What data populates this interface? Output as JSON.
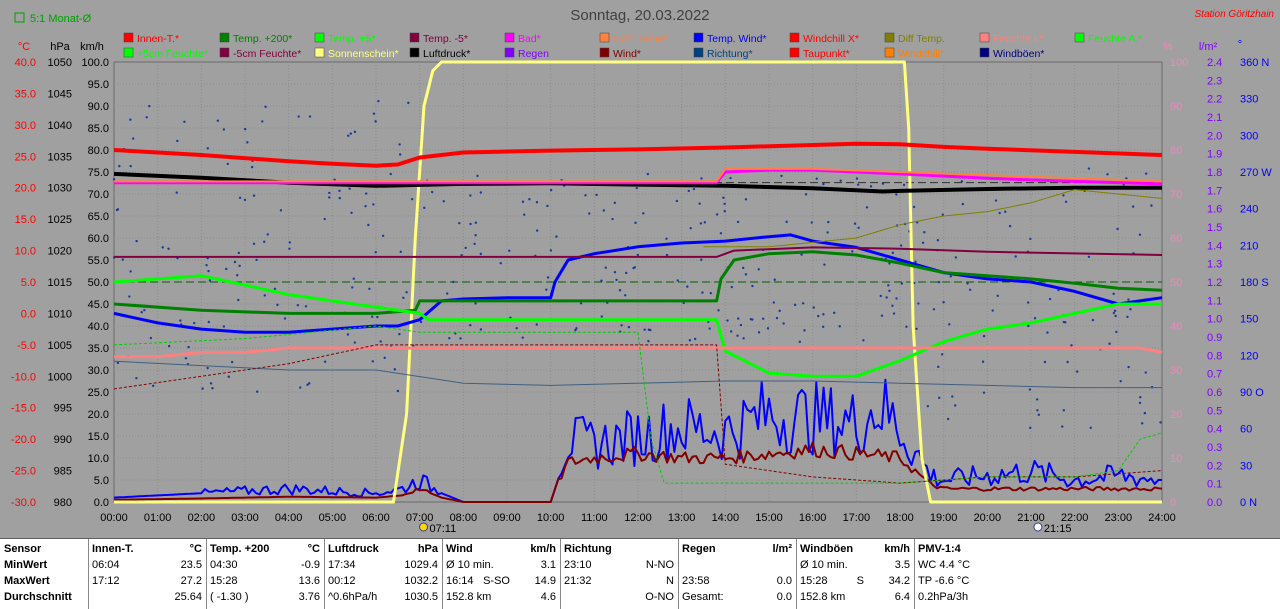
{
  "header": {
    "title": "Sonntag, 20.03.2022",
    "station": "Station Göritzhain",
    "checkbox_label": "5:1 Monat-Ø"
  },
  "colors": {
    "background": "#a0a0a0",
    "grid": "#8c8c8c"
  },
  "axes": {
    "temp": {
      "unit": "°C",
      "ticks": [
        "40.0",
        "35.0",
        "30.0",
        "25.0",
        "20.0",
        "15.0",
        "10.0",
        "5.0",
        "0.0",
        "-5.0",
        "-10.0",
        "-15.0",
        "-20.0",
        "-25.0",
        "-30.0"
      ],
      "color": "#ff0000"
    },
    "hpa": {
      "unit": "hPa",
      "ticks": [
        "1050",
        "1045",
        "1040",
        "1035",
        "1030",
        "1025",
        "1020",
        "1015",
        "1010",
        "1005",
        "1000",
        "995",
        "990",
        "985",
        "980"
      ],
      "color": "#000000"
    },
    "kmh": {
      "unit": "km/h",
      "ticks": [
        "100.0",
        "95.0",
        "90.0",
        "85.0",
        "80.0",
        "75.0",
        "70.0",
        "65.0",
        "60.0",
        "55.0",
        "50.0",
        "45.0",
        "40.0",
        "35.0",
        "30.0",
        "25.0",
        "20.0",
        "15.0",
        "10.0",
        "5.0",
        "0.0"
      ],
      "color": "#000000"
    },
    "pct": {
      "unit": "%",
      "ticks": [
        "100",
        "90",
        "80",
        "70",
        "60",
        "50",
        "40",
        "30",
        "20",
        "10",
        "0"
      ],
      "color": "#ff7fbf"
    },
    "lm2": {
      "unit": "l/m²",
      "ticks": [
        "2.4",
        "2.3",
        "2.2",
        "2.1",
        "2.0",
        "1.9",
        "1.8",
        "1.7",
        "1.6",
        "1.5",
        "1.4",
        "1.3",
        "1.2",
        "1.1",
        "1.0",
        "0.9",
        "0.8",
        "0.7",
        "0.6",
        "0.5",
        "0.4",
        "0.3",
        "0.2",
        "0.1",
        "0.0"
      ],
      "color": "#8000ff"
    },
    "dir": {
      "unit": "°",
      "ticks": [
        "360 N",
        "330",
        "300",
        "270 W",
        "240",
        "210",
        "180 S",
        "150",
        "120",
        "90 O",
        "60",
        "30",
        "0 N"
      ],
      "color": "#0000ff"
    },
    "time": {
      "ticks": [
        "00:00",
        "01:00",
        "02:00",
        "03:00",
        "04:00",
        "05:00",
        "06:00",
        "07:00",
        "08:00",
        "09:00",
        "10:00",
        "11:00",
        "12:00",
        "13:00",
        "14:00",
        "15:00",
        "16:00",
        "17:00",
        "18:00",
        "19:00",
        "20:00",
        "21:00",
        "22:00",
        "23:00",
        "24:00"
      ]
    }
  },
  "sun_markers": [
    {
      "hour": 7.18,
      "label": "07:11",
      "icon": "sunrise-icon"
    },
    {
      "hour": 21.25,
      "label": "21:15",
      "icon": "moonrise-icon"
    }
  ],
  "legend": [
    {
      "label": "Innen-T.*",
      "color": "#ff0000"
    },
    {
      "label": "Temp. +200*",
      "color": "#008000"
    },
    {
      "label": "Temp. +5*",
      "color": "#00ff00"
    },
    {
      "label": "Temp. -5*",
      "color": "#800040"
    },
    {
      "label": "Bad*",
      "color": "#ff00ff"
    },
    {
      "label": "Gast Temp*",
      "color": "#ff8040"
    },
    {
      "label": "Temp. Wind*",
      "color": "#0000ff"
    },
    {
      "label": "Windchill X*",
      "color": "#ff0000"
    },
    {
      "label": "Diff Temp.",
      "color": "#808000"
    },
    {
      "label": "Feuchte I.*",
      "color": "#ff8080"
    },
    {
      "label": "Feuchte A.*",
      "color": "#00ff00"
    },
    {
      "label": "+5cm Feuchte*",
      "color": "#00ff00"
    },
    {
      "label": "-5cm Feuchte*",
      "color": "#800040"
    },
    {
      "label": "Sonnenschein*",
      "color": "#ffff80"
    },
    {
      "label": "Luftdruck*",
      "color": "#000000"
    },
    {
      "label": "Regen",
      "color": "#8000ff"
    },
    {
      "label": "Wind*",
      "color": "#800000"
    },
    {
      "label": "Richtung*",
      "color": "#004080"
    },
    {
      "label": "Taupunkt*",
      "color": "#ff0000"
    },
    {
      "label": "Windchill*",
      "color": "#ff8000"
    },
    {
      "label": "Windböen*",
      "color": "#000080"
    }
  ],
  "chart_data": {
    "type": "line",
    "x_unit": "hours",
    "xlim": [
      0,
      24
    ],
    "series": [
      {
        "name": "Sonnenschein*",
        "axis": "pct",
        "color": "#ffff80",
        "width": 3,
        "x": [
          0,
          6.4,
          6.7,
          6.9,
          7.1,
          7.3,
          7.5,
          17.6,
          18.0,
          18.1,
          18.2,
          18.3,
          18.5,
          18.7,
          24
        ],
        "y": [
          0,
          0,
          20,
          60,
          90,
          98,
          100,
          100,
          100,
          100,
          85,
          40,
          10,
          0,
          0
        ]
      },
      {
        "name": "Innen-T.*",
        "axis": "temp",
        "color": "#ff0000",
        "width": 4,
        "x": [
          0,
          2,
          4,
          5,
          6,
          6.5,
          7,
          8,
          10,
          12,
          14,
          16,
          17,
          18,
          19,
          20,
          22,
          24
        ],
        "y": [
          26,
          25.2,
          24.2,
          23.8,
          23.5,
          23.7,
          24.8,
          25.6,
          25.9,
          26.1,
          26.4,
          26.8,
          27.0,
          26.9,
          26.5,
          26.2,
          25.7,
          25.2
        ]
      },
      {
        "name": "Luftdruck*",
        "axis": "hpa",
        "color": "#000000",
        "width": 4,
        "x": [
          0,
          2,
          4,
          6,
          8,
          10,
          12,
          14,
          16,
          17.6,
          18,
          20,
          22,
          24
        ],
        "y": [
          1032.2,
          1031.6,
          1030.8,
          1030.3,
          1030.6,
          1030.7,
          1030.5,
          1030.3,
          1029.9,
          1029.4,
          1029.5,
          1029.8,
          1030.0,
          1030.0
        ]
      },
      {
        "name": "Temp. Wind*",
        "axis": "temp",
        "color": "#0000ff",
        "width": 3,
        "x": [
          0,
          1,
          2,
          3,
          4,
          5,
          6,
          6.5,
          7,
          7.5,
          8,
          9,
          10,
          10.1,
          10.4,
          11,
          12,
          13,
          14,
          15,
          15.5,
          16,
          17,
          18,
          19,
          20,
          21,
          22,
          23,
          24
        ],
        "y": [
          0,
          -1.5,
          -2.5,
          -3,
          -3,
          -2.5,
          -2,
          -2,
          -1,
          2,
          2.3,
          2.5,
          2.5,
          5,
          8.5,
          9.5,
          10.6,
          11.2,
          11.5,
          12.2,
          12.5,
          11.5,
          10.5,
          8.5,
          6.5,
          5.5,
          5.0,
          3.5,
          1.5,
          2.5
        ]
      },
      {
        "name": "Temp. +200*",
        "axis": "temp",
        "color": "#008000",
        "width": 3,
        "x": [
          0,
          2,
          4,
          6,
          6.9,
          7,
          13.8,
          13.9,
          14.2,
          15,
          16,
          17,
          18,
          19,
          20,
          21,
          22,
          23,
          24
        ],
        "y": [
          1.5,
          0.5,
          0,
          0,
          0.5,
          2,
          2,
          5.5,
          8.5,
          9.5,
          9.8,
          9.3,
          8.0,
          6.5,
          6.0,
          5.5,
          4.8,
          4.0,
          3.7
        ]
      },
      {
        "name": "Temp. +5*",
        "axis": "temp",
        "color": "#00ff00",
        "width": 3,
        "x": [
          0,
          1,
          2,
          3,
          4,
          5,
          6,
          7,
          7.2,
          12,
          13.8,
          14,
          15,
          16,
          17,
          18,
          19,
          20,
          21,
          22,
          23,
          24
        ],
        "y": [
          5,
          5.5,
          6,
          4.5,
          3,
          2,
          1,
          0,
          -1,
          -1,
          -1,
          -6,
          -9.5,
          -10,
          -10,
          -7.5,
          -4.5,
          -2.5,
          -1.5,
          0,
          1.5,
          1.5
        ]
      },
      {
        "name": "Temp. -5*",
        "axis": "temp",
        "color": "#800040",
        "width": 2,
        "x": [
          0,
          13.8,
          14.2,
          16,
          18,
          20,
          24
        ],
        "y": [
          9,
          9,
          10,
          10.5,
          10.3,
          9.8,
          9.3
        ]
      },
      {
        "name": "Bad*",
        "axis": "temp",
        "color": "#ff00ff",
        "width": 3,
        "x": [
          0,
          13.8,
          14,
          15,
          16,
          17,
          18,
          20,
          22,
          24
        ],
        "y": [
          20.8,
          20.8,
          22.5,
          22.8,
          22.8,
          22.5,
          22.2,
          21.5,
          21,
          20.6
        ]
      },
      {
        "name": "Gast Temp*",
        "axis": "temp",
        "color": "#ff8040",
        "width": 2,
        "x": [
          0,
          13.8,
          14,
          16,
          18,
          20,
          22,
          24
        ],
        "y": [
          21,
          21,
          23,
          23,
          22.5,
          22,
          21.5,
          21
        ]
      },
      {
        "name": "Feuchte I.*",
        "axis": "pct",
        "color": "#ff8080",
        "width": 3,
        "x": [
          0,
          1,
          2,
          3,
          4,
          5,
          6,
          7,
          8,
          10,
          12,
          14,
          16,
          18,
          20,
          22,
          23.5,
          24
        ],
        "y": [
          33,
          33,
          34,
          34,
          35,
          35,
          35,
          35,
          35,
          35,
          35,
          35,
          35,
          35,
          35,
          35,
          35,
          34
        ]
      },
      {
        "name": "Diff Temp.",
        "axis": "pct",
        "color": "#808000",
        "width": 1,
        "x": [
          13.5,
          14,
          15,
          16,
          17,
          18,
          19,
          20,
          21,
          22,
          23,
          24
        ],
        "y": [
          58,
          58,
          58,
          59,
          60,
          63,
          65,
          66,
          68,
          71,
          70,
          69
        ]
      },
      {
        "name": "Richtung*",
        "axis": "pct",
        "color": "#406080",
        "width": 1,
        "x": [
          0,
          2,
          4,
          6,
          8,
          10,
          12,
          14,
          16,
          18,
          20,
          22,
          24
        ],
        "y": [
          32,
          31,
          30,
          30,
          27,
          26.5,
          27,
          27.5,
          27.5,
          27,
          26.5,
          26,
          26
        ]
      }
    ],
    "wind": {
      "axis": "kmh",
      "color": "#800000",
      "x": [
        0,
        2,
        4,
        6,
        6.6,
        7,
        7.5,
        8,
        10,
        10.1,
        10.4,
        11,
        12,
        13,
        14,
        15,
        16,
        17,
        18,
        18.7,
        19,
        20,
        21,
        22,
        23,
        24
      ],
      "y": [
        0.5,
        0.8,
        1.2,
        1.0,
        1.5,
        3,
        1,
        0,
        0,
        3,
        9,
        10,
        11,
        10,
        10,
        11,
        12,
        11,
        10,
        4,
        3,
        3,
        3,
        3,
        3,
        3
      ]
    },
    "gusts": {
      "axis": "kmh",
      "color": "#0000ff",
      "x": [
        0,
        2,
        4,
        6,
        6.6,
        7,
        7.5,
        8,
        10,
        10.1,
        10.4,
        11,
        12,
        13,
        14,
        15,
        16,
        17,
        17.5,
        18,
        18.7,
        19,
        20,
        21,
        22,
        23,
        24
      ],
      "y": [
        1,
        2,
        3,
        2,
        3,
        5,
        2,
        0,
        0,
        5,
        14,
        13,
        15,
        17,
        16,
        20,
        19,
        18,
        22,
        17,
        6,
        5,
        6,
        7,
        5,
        6,
        5
      ]
    },
    "rain_mm": 0.0
  },
  "stats": {
    "cols": [
      {
        "title": "Sensor",
        "unit": "",
        "rows": [
          [
            "MinWert",
            "",
            ""
          ],
          [
            "MaxWert",
            "",
            ""
          ],
          [
            "Durchschnitt",
            "",
            ""
          ]
        ]
      },
      {
        "title": "Innen-T.",
        "unit": "°C",
        "rows": [
          [
            "06:04",
            "",
            "23.5"
          ],
          [
            "17:12",
            "",
            "27.2"
          ],
          [
            "",
            "",
            "25.64"
          ]
        ]
      },
      {
        "title": "Temp. +200",
        "unit": "°C",
        "rows": [
          [
            "04:30",
            "",
            "-0.9"
          ],
          [
            "15:28",
            "",
            "13.6"
          ],
          [
            "( -1.30 )",
            "",
            "3.76"
          ]
        ]
      },
      {
        "title": "Luftdruck",
        "unit": "hPa",
        "rows": [
          [
            "17:34",
            "",
            "1029.4"
          ],
          [
            "00:12",
            "",
            "1032.2"
          ],
          [
            "^0.6hPa/h",
            "",
            "1030.5"
          ]
        ]
      },
      {
        "title": "Wind",
        "unit": "km/h",
        "rows": [
          [
            "Ø 10 min.",
            "",
            "3.1"
          ],
          [
            "16:14",
            "S-SO",
            "14.9"
          ],
          [
            "152.8 km",
            "",
            "4.6"
          ]
        ]
      },
      {
        "title": "Richtung",
        "unit": "",
        "rows": [
          [
            "23:10",
            "",
            "N-NO"
          ],
          [
            "21:32",
            "",
            "N"
          ],
          [
            "",
            "",
            "O-NO"
          ]
        ]
      },
      {
        "title": "Regen",
        "unit": "l/m²",
        "rows": [
          [
            "",
            "",
            ""
          ],
          [
            "23:58",
            "",
            "0.0"
          ],
          [
            "Gesamt:",
            "",
            "0.0"
          ]
        ]
      },
      {
        "title": "Windböen",
        "unit": "km/h",
        "rows": [
          [
            "Ø 10 min.",
            "",
            "3.5"
          ],
          [
            "15:28",
            "S",
            "34.2"
          ],
          [
            "152.8 km",
            "",
            "6.4"
          ]
        ]
      },
      {
        "title": "PMV-1:4",
        "unit": "",
        "rows": [
          [
            "WC 4.4 °C",
            "",
            ""
          ],
          [
            "TP -6.6 °C",
            "",
            ""
          ],
          [
            "0.2hPa/3h",
            "",
            ""
          ]
        ]
      }
    ]
  }
}
